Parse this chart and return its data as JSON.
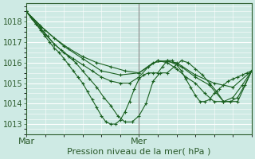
{
  "bg_color": "#ceeae4",
  "grid_color_major": "#ffffff",
  "grid_color_minor": "#e8f5f2",
  "line_color": "#1a6020",
  "marker": "+",
  "xlabel": "Pression niveau de la mer( hPa )",
  "yticks": [
    1013,
    1014,
    1015,
    1016,
    1017,
    1018
  ],
  "xtick_labels": [
    "Mar",
    "Mer"
  ],
  "xtick_positions": [
    0,
    0.5
  ],
  "ylim": [
    1012.5,
    1018.9
  ],
  "xlim": [
    0,
    1.0
  ],
  "vline_x": 0.5,
  "vline_color": "#888888",
  "series": [
    {
      "x": [
        0.0,
        0.083,
        0.167,
        0.25,
        0.333,
        0.417,
        0.5,
        0.583,
        0.667,
        0.75,
        0.833,
        0.917,
        1.0
      ],
      "y": [
        1018.5,
        1017.6,
        1016.8,
        1016.2,
        1015.6,
        1015.4,
        1015.5,
        1016.1,
        1016.0,
        1015.4,
        1015.0,
        1014.8,
        1015.6
      ]
    },
    {
      "x": [
        0.0,
        0.062,
        0.125,
        0.188,
        0.25,
        0.313,
        0.375,
        0.438,
        0.5,
        0.563,
        0.625,
        0.688,
        0.75,
        0.813,
        0.875,
        0.938,
        1.0
      ],
      "y": [
        1018.5,
        1017.8,
        1017.2,
        1016.7,
        1016.3,
        1016.0,
        1015.8,
        1015.6,
        1015.5,
        1016.0,
        1016.1,
        1015.8,
        1015.3,
        1014.9,
        1014.1,
        1014.1,
        1015.6
      ]
    },
    {
      "x": [
        0.0,
        0.042,
        0.083,
        0.125,
        0.167,
        0.208,
        0.25,
        0.292,
        0.333,
        0.375,
        0.417,
        0.458,
        0.5,
        0.542,
        0.583,
        0.625,
        0.667,
        0.708,
        0.75,
        0.792,
        0.833,
        0.875,
        0.917,
        0.958,
        1.0
      ],
      "y": [
        1018.5,
        1017.9,
        1017.4,
        1016.9,
        1016.5,
        1016.2,
        1015.9,
        1015.6,
        1015.3,
        1015.1,
        1015.0,
        1015.0,
        1015.3,
        1015.8,
        1016.1,
        1016.0,
        1015.7,
        1015.3,
        1015.0,
        1014.5,
        1014.1,
        1014.1,
        1014.3,
        1014.9,
        1015.6
      ]
    },
    {
      "x": [
        0.0,
        0.031,
        0.063,
        0.094,
        0.125,
        0.156,
        0.188,
        0.219,
        0.25,
        0.281,
        0.313,
        0.344,
        0.375,
        0.406,
        0.438,
        0.469,
        0.5,
        0.531,
        0.563,
        0.594,
        0.625,
        0.656,
        0.688,
        0.719,
        0.75,
        0.781,
        0.813,
        0.844,
        0.875,
        0.906,
        0.938,
        0.969,
        1.0
      ],
      "y": [
        1018.5,
        1018.1,
        1017.7,
        1017.3,
        1016.9,
        1016.6,
        1016.3,
        1016.0,
        1015.6,
        1015.2,
        1014.8,
        1014.3,
        1013.9,
        1013.4,
        1013.1,
        1013.1,
        1013.4,
        1014.0,
        1015.1,
        1015.5,
        1015.5,
        1015.8,
        1016.1,
        1016.0,
        1015.7,
        1015.4,
        1015.0,
        1014.6,
        1014.1,
        1014.1,
        1014.3,
        1014.9,
        1015.6
      ]
    },
    {
      "x": [
        0.0,
        0.021,
        0.042,
        0.063,
        0.083,
        0.104,
        0.125,
        0.146,
        0.167,
        0.188,
        0.208,
        0.229,
        0.25,
        0.271,
        0.292,
        0.313,
        0.333,
        0.354,
        0.375,
        0.396,
        0.417,
        0.438,
        0.458,
        0.479,
        0.5,
        0.521,
        0.542,
        0.563,
        0.583,
        0.604,
        0.625,
        0.646,
        0.667,
        0.688,
        0.708,
        0.729,
        0.75,
        0.771,
        0.792,
        0.813,
        0.833,
        0.854,
        0.875,
        0.896,
        0.917,
        0.938,
        0.958,
        0.979,
        1.0
      ],
      "y": [
        1018.5,
        1018.2,
        1017.9,
        1017.6,
        1017.3,
        1017.0,
        1016.7,
        1016.5,
        1016.2,
        1015.9,
        1015.6,
        1015.3,
        1015.0,
        1014.6,
        1014.2,
        1013.8,
        1013.4,
        1013.1,
        1013.0,
        1013.0,
        1013.2,
        1013.6,
        1014.1,
        1014.7,
        1015.2,
        1015.4,
        1015.5,
        1015.5,
        1015.5,
        1015.8,
        1016.1,
        1016.1,
        1015.9,
        1015.6,
        1015.2,
        1014.8,
        1014.4,
        1014.1,
        1014.1,
        1014.2,
        1014.5,
        1014.7,
        1014.9,
        1015.1,
        1015.2,
        1015.3,
        1015.4,
        1015.5,
        1015.6
      ]
    }
  ]
}
